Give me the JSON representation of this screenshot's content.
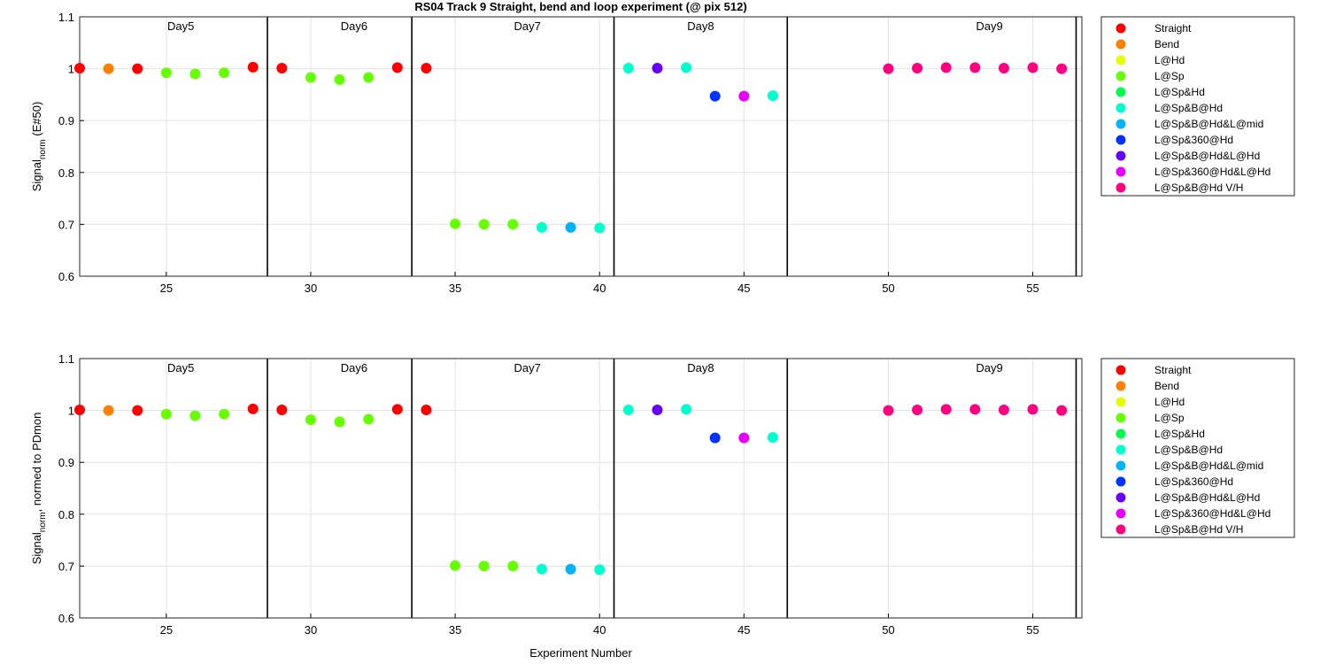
{
  "figure": {
    "title": "RS04 Track 9  Straight, bend and loop experiment (@ pix 512)",
    "xlabel": "Experiment Number"
  },
  "chart_data": [
    {
      "type": "scatter",
      "title": "RS04 Track 9  Straight, bend and loop experiment (@ pix 512)",
      "xlabel": "",
      "ylabel": {
        "main": "Signal",
        "sub": "norm",
        "rest": " (E#50)"
      },
      "xlim": [
        22,
        56.7
      ],
      "ylim": [
        0.6,
        1.1
      ],
      "xticks": [
        "25",
        "30",
        "35",
        "40",
        "45",
        "50",
        "55"
      ],
      "yticks": [
        "0.6",
        "0.7",
        "0.8",
        "0.9",
        "1",
        "1.1"
      ],
      "grid": true,
      "legend_position": "outside-right",
      "day_dividers": [
        28.5,
        33.5,
        40.5,
        46.5,
        56.5
      ],
      "day_labels": [
        {
          "text": "Day5",
          "x": 25.5
        },
        {
          "text": "Day6",
          "x": 31.5
        },
        {
          "text": "Day7",
          "x": 37.5
        },
        {
          "text": "Day8",
          "x": 43.5
        },
        {
          "text": "Day9",
          "x": 53.5
        }
      ],
      "series": [
        {
          "name": "Straight",
          "color": "#ff0000",
          "points": [
            [
              22,
              1.001
            ],
            [
              24,
              1.0
            ],
            [
              28,
              1.003
            ],
            [
              29,
              1.001
            ],
            [
              33,
              1.002
            ],
            [
              34,
              1.001
            ]
          ]
        },
        {
          "name": "Bend",
          "color": "#ff8000",
          "points": [
            [
              23,
              1.0
            ]
          ]
        },
        {
          "name": "L@Hd",
          "color": "#e6ff00",
          "points": []
        },
        {
          "name": "L@Sp",
          "color": "#66ff00",
          "points": [
            [
              25,
              0.992
            ],
            [
              26,
              0.99
            ],
            [
              27,
              0.992
            ],
            [
              30,
              0.983
            ],
            [
              31,
              0.979
            ],
            [
              32,
              0.983
            ],
            [
              35,
              0.701
            ],
            [
              36,
              0.7
            ],
            [
              37,
              0.7
            ]
          ]
        },
        {
          "name": "L@Sp&Hd",
          "color": "#00ff4d",
          "points": []
        },
        {
          "name": "L@Sp&B@Hd",
          "color": "#00ffcc",
          "points": [
            [
              38,
              0.694
            ],
            [
              40,
              0.693
            ],
            [
              41,
              1.001
            ],
            [
              43,
              1.002
            ],
            [
              46,
              0.948
            ]
          ]
        },
        {
          "name": "L@Sp&B@Hd&L@mid",
          "color": "#00b3ff",
          "points": [
            [
              39,
              0.694
            ]
          ]
        },
        {
          "name": "L@Sp&360@Hd",
          "color": "#0033ff",
          "points": [
            [
              44,
              0.947
            ]
          ]
        },
        {
          "name": "L@Sp&B@Hd&L@Hd",
          "color": "#6600ff",
          "points": [
            [
              42,
              1.001
            ]
          ]
        },
        {
          "name": "L@Sp&360@Hd&L@Hd",
          "color": "#e600ff",
          "points": [
            [
              45,
              0.947
            ]
          ]
        },
        {
          "name": "L@Sp&B@Hd V/H",
          "color": "#ff0080",
          "points": [
            [
              50,
              1.0
            ],
            [
              51,
              1.001
            ],
            [
              52,
              1.002
            ],
            [
              53,
              1.002
            ],
            [
              54,
              1.001
            ],
            [
              55,
              1.002
            ],
            [
              56,
              1.0
            ]
          ]
        }
      ]
    },
    {
      "type": "scatter",
      "title": "",
      "xlabel": "Experiment Number",
      "ylabel": {
        "main": "Signal",
        "sub": "norm",
        "rest": ", normed to PDmon"
      },
      "xlim": [
        22,
        56.7
      ],
      "ylim": [
        0.6,
        1.1
      ],
      "xticks": [
        "25",
        "30",
        "35",
        "40",
        "45",
        "50",
        "55"
      ],
      "yticks": [
        "0.6",
        "0.7",
        "0.8",
        "0.9",
        "1",
        "1.1"
      ],
      "grid": true,
      "legend_position": "outside-right",
      "day_dividers": [
        28.5,
        33.5,
        40.5,
        46.5,
        56.5
      ],
      "day_labels": [
        {
          "text": "Day5",
          "x": 25.5
        },
        {
          "text": "Day6",
          "x": 31.5
        },
        {
          "text": "Day7",
          "x": 37.5
        },
        {
          "text": "Day8",
          "x": 43.5
        },
        {
          "text": "Day9",
          "x": 53.5
        }
      ],
      "series": [
        {
          "name": "Straight",
          "color": "#ff0000",
          "points": [
            [
              22,
              1.001
            ],
            [
              24,
              1.0
            ],
            [
              28,
              1.003
            ],
            [
              29,
              1.001
            ],
            [
              33,
              1.002
            ],
            [
              34,
              1.001
            ]
          ]
        },
        {
          "name": "Bend",
          "color": "#ff8000",
          "points": [
            [
              23,
              1.0
            ]
          ]
        },
        {
          "name": "L@Hd",
          "color": "#e6ff00",
          "points": []
        },
        {
          "name": "L@Sp",
          "color": "#66ff00",
          "points": [
            [
              25,
              0.993
            ],
            [
              26,
              0.99
            ],
            [
              27,
              0.993
            ],
            [
              30,
              0.982
            ],
            [
              31,
              0.978
            ],
            [
              32,
              0.983
            ],
            [
              35,
              0.701
            ],
            [
              36,
              0.7
            ],
            [
              37,
              0.7
            ]
          ]
        },
        {
          "name": "L@Sp&Hd",
          "color": "#00ff4d",
          "points": []
        },
        {
          "name": "L@Sp&B@Hd",
          "color": "#00ffcc",
          "points": [
            [
              38,
              0.694
            ],
            [
              40,
              0.693
            ],
            [
              41,
              1.001
            ],
            [
              43,
              1.002
            ],
            [
              46,
              0.948
            ]
          ]
        },
        {
          "name": "L@Sp&B@Hd&L@mid",
          "color": "#00b3ff",
          "points": [
            [
              39,
              0.694
            ]
          ]
        },
        {
          "name": "L@Sp&360@Hd",
          "color": "#0033ff",
          "points": [
            [
              44,
              0.947
            ]
          ]
        },
        {
          "name": "L@Sp&B@Hd&L@Hd",
          "color": "#6600ff",
          "points": [
            [
              42,
              1.001
            ]
          ]
        },
        {
          "name": "L@Sp&360@Hd&L@Hd",
          "color": "#e600ff",
          "points": [
            [
              45,
              0.947
            ]
          ]
        },
        {
          "name": "L@Sp&B@Hd V/H",
          "color": "#ff0080",
          "points": [
            [
              50,
              1.0
            ],
            [
              51,
              1.001
            ],
            [
              52,
              1.002
            ],
            [
              53,
              1.002
            ],
            [
              54,
              1.001
            ],
            [
              55,
              1.002
            ],
            [
              56,
              1.0
            ]
          ]
        }
      ]
    }
  ]
}
